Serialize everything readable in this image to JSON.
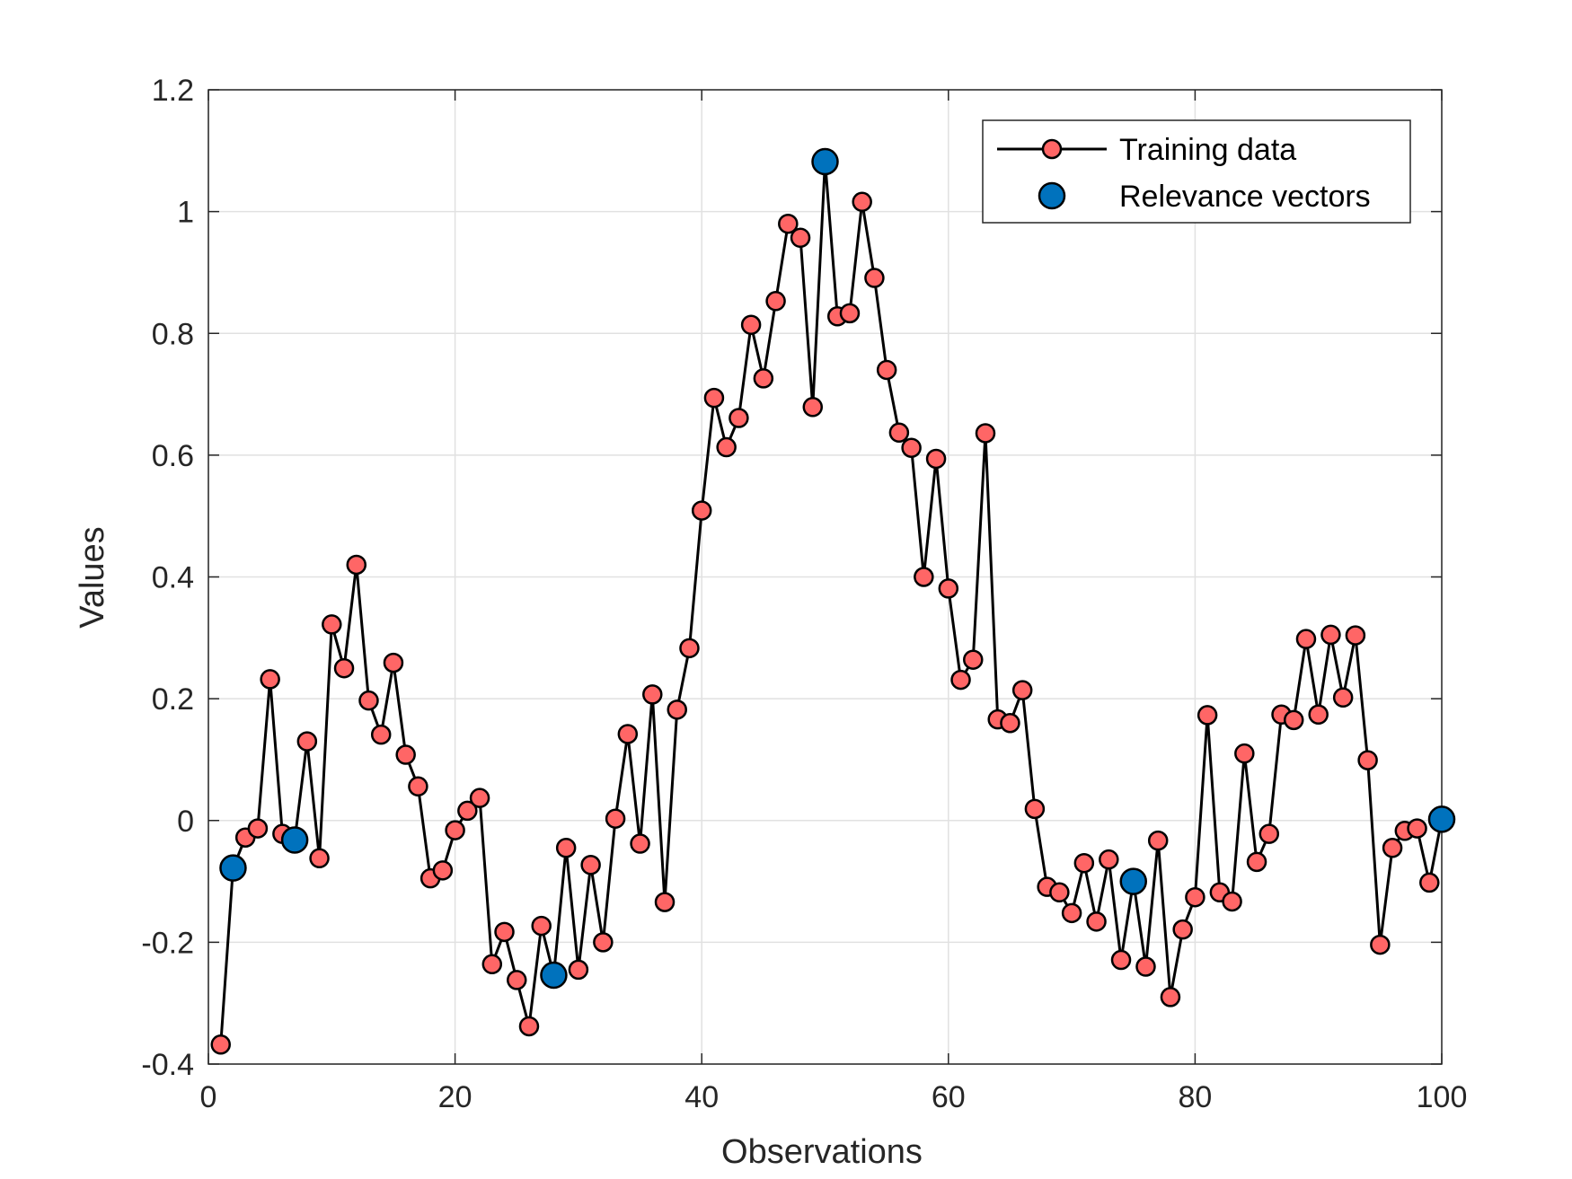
{
  "chart_data": {
    "type": "line",
    "title": "",
    "xlabel": "Observations",
    "ylabel": "Values",
    "xlim": [
      0,
      100
    ],
    "ylim": [
      -0.4,
      1.2
    ],
    "xticks": [
      0,
      20,
      40,
      60,
      80,
      100
    ],
    "xtick_labels": [
      "0",
      "20",
      "40",
      "60",
      "80",
      "100"
    ],
    "yticks": [
      -0.4,
      -0.2,
      0,
      0.2,
      0.4,
      0.6,
      0.8,
      1,
      1.2
    ],
    "ytick_labels": [
      "-0.4",
      "-0.2",
      "0",
      "0.2",
      "0.4",
      "0.6",
      "0.8",
      "1",
      "1.2"
    ],
    "grid": true,
    "legend_position": "top-right",
    "series": [
      {
        "name": "Training data",
        "style": "line-with-markers",
        "line_color": "#000000",
        "marker_color": "#ff6666",
        "x": [
          1,
          2,
          3,
          4,
          5,
          6,
          7,
          8,
          9,
          10,
          11,
          12,
          13,
          14,
          15,
          16,
          17,
          18,
          19,
          20,
          21,
          22,
          23,
          24,
          25,
          26,
          27,
          28,
          29,
          30,
          31,
          32,
          33,
          34,
          35,
          36,
          37,
          38,
          39,
          40,
          41,
          42,
          43,
          44,
          45,
          46,
          47,
          48,
          49,
          50,
          51,
          52,
          53,
          54,
          55,
          56,
          57,
          58,
          59,
          60,
          61,
          62,
          63,
          64,
          65,
          66,
          67,
          68,
          69,
          70,
          71,
          72,
          73,
          74,
          75,
          76,
          77,
          78,
          79,
          80,
          81,
          82,
          83,
          84,
          85,
          86,
          87,
          88,
          89,
          90,
          91,
          92,
          93,
          94,
          95,
          96,
          97,
          98,
          99,
          100
        ],
        "y": [
          -0.368,
          -0.078,
          -0.028,
          -0.013,
          0.232,
          -0.022,
          -0.032,
          0.13,
          -0.062,
          0.322,
          0.25,
          0.42,
          0.197,
          0.141,
          0.259,
          0.108,
          0.056,
          -0.095,
          -0.082,
          -0.016,
          0.016,
          0.037,
          -0.236,
          -0.183,
          -0.262,
          -0.338,
          -0.173,
          -0.254,
          -0.045,
          -0.245,
          -0.073,
          -0.2,
          0.003,
          0.142,
          -0.038,
          0.207,
          -0.134,
          0.182,
          0.283,
          0.509,
          0.694,
          0.613,
          0.661,
          0.814,
          0.726,
          0.853,
          0.98,
          0.957,
          0.679,
          1.082,
          0.828,
          0.833,
          1.016,
          0.891,
          0.74,
          0.637,
          0.612,
          0.4,
          0.594,
          0.381,
          0.231,
          0.264,
          0.636,
          0.166,
          0.16,
          0.214,
          0.019,
          -0.109,
          -0.118,
          -0.152,
          -0.07,
          -0.166,
          -0.064,
          -0.229,
          -0.1,
          -0.24,
          -0.033,
          -0.29,
          -0.179,
          -0.126,
          0.173,
          -0.118,
          -0.133,
          0.11,
          -0.068,
          -0.022,
          0.174,
          0.165,
          0.298,
          0.174,
          0.305,
          0.202,
          0.304,
          0.099,
          -0.204,
          -0.045,
          -0.017,
          -0.013,
          -0.102,
          0.002
        ]
      },
      {
        "name": "Relevance vectors",
        "style": "markers",
        "marker_color": "#0072bd",
        "x": [
          2,
          7,
          28,
          50,
          75,
          100
        ],
        "y": [
          -0.078,
          -0.032,
          -0.254,
          1.082,
          -0.1,
          0.002
        ]
      }
    ]
  }
}
